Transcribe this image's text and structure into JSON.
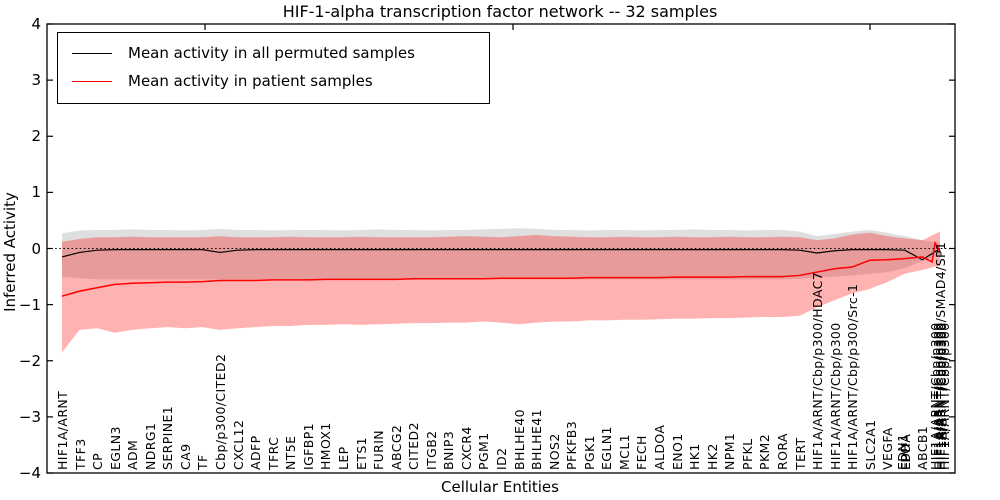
{
  "title": "HIF-1-alpha transcription factor network -- 32 samples",
  "chart_data": {
    "type": "line",
    "title": "HIF-1-alpha transcription factor network -- 32 samples",
    "xlabel": "Cellular Entities",
    "ylabel": "Inferred Activity",
    "ylim": [
      -4,
      4
    ],
    "yticks": [
      4,
      3,
      2,
      1,
      0,
      -1,
      -2,
      -3,
      -4
    ],
    "grid": false,
    "legend_position": "upper left",
    "zero_line": 0,
    "categories": [
      "HIF1A/ARNT",
      "TFF3",
      "CP",
      "EGLN3",
      "ADM",
      "NDRG1",
      "SERPINE1",
      "CA9",
      "TF",
      "Cbp/p300/CITED2",
      "CXCL12",
      "ADFP",
      "TFRC",
      "NT5E",
      "IGFBP1",
      "HMOX1",
      "LEP",
      "ETS1",
      "FURIN",
      "ABCG2",
      "CITED2",
      "ITGB2",
      "BNIP3",
      "CXCR4",
      "PGM1",
      "ID2",
      "BHLHE40",
      "BHLHE41",
      "NOS2",
      "PFKFB3",
      "PGK1",
      "EGLN1",
      "MCL1",
      "FECH",
      "ALDOA",
      "ENO1",
      "HK1",
      "HK2",
      "NPM1",
      "PFKL",
      "PKM2",
      "RORA",
      "TERT",
      "HIF1A/ARNT/Cbp/p300/HDAC7",
      "HIF1A/ARNT/Cbp/p300",
      "HIF1A/ARNT/Cbp/p300/Src-1",
      "SLC2A1",
      "VEGFA",
      "EPO",
      "ABCB1",
      "HIF1A/ARNT/Cbp/p300/SMAD4/SP1"
    ],
    "overlapping_labels": [
      {
        "index": 48,
        "labels": [
          "EDN1",
          "LDHA"
        ]
      },
      {
        "index": 50,
        "labels": [
          "HIF1A/ARNT/Cbp/p300",
          "HIF1A/ARNT/Cbp/p300",
          "HIF1A/ARNT/Cbp/p300",
          "HIF1A/ARNT/Cbp/p300"
        ]
      }
    ],
    "series": [
      {
        "name": "Mean activity in all permuted samples",
        "color": "#000000",
        "band_color": "rgba(128,128,128,0.25)",
        "values": [
          -0.15,
          -0.07,
          -0.03,
          -0.02,
          -0.02,
          -0.02,
          -0.02,
          -0.02,
          -0.02,
          -0.07,
          -0.03,
          -0.02,
          -0.02,
          -0.02,
          -0.02,
          -0.02,
          -0.02,
          -0.02,
          -0.02,
          -0.02,
          -0.02,
          -0.02,
          -0.02,
          -0.02,
          -0.02,
          -0.02,
          -0.02,
          -0.02,
          -0.02,
          -0.02,
          -0.02,
          -0.02,
          -0.02,
          -0.02,
          -0.02,
          -0.02,
          -0.02,
          -0.02,
          -0.02,
          -0.02,
          -0.02,
          -0.02,
          -0.03,
          -0.08,
          -0.04,
          -0.02,
          -0.02,
          -0.02,
          -0.03,
          -0.2,
          0.0
        ],
        "band_upper": [
          0.27,
          0.32,
          0.33,
          0.33,
          0.34,
          0.33,
          0.33,
          0.32,
          0.33,
          0.35,
          0.33,
          0.33,
          0.32,
          0.33,
          0.33,
          0.33,
          0.32,
          0.33,
          0.34,
          0.33,
          0.33,
          0.32,
          0.33,
          0.33,
          0.34,
          0.35,
          0.36,
          0.35,
          0.33,
          0.33,
          0.32,
          0.33,
          0.33,
          0.32,
          0.33,
          0.33,
          0.34,
          0.33,
          0.33,
          0.32,
          0.33,
          0.33,
          0.3,
          0.22,
          0.26,
          0.3,
          0.33,
          0.28,
          0.22,
          0.15,
          0.1
        ],
        "band_lower": [
          -0.5,
          -0.53,
          -0.55,
          -0.55,
          -0.55,
          -0.55,
          -0.55,
          -0.55,
          -0.55,
          -0.55,
          -0.55,
          -0.55,
          -0.55,
          -0.55,
          -0.55,
          -0.55,
          -0.55,
          -0.55,
          -0.55,
          -0.55,
          -0.55,
          -0.55,
          -0.55,
          -0.55,
          -0.55,
          -0.55,
          -0.55,
          -0.55,
          -0.55,
          -0.55,
          -0.55,
          -0.55,
          -0.55,
          -0.55,
          -0.55,
          -0.55,
          -0.55,
          -0.55,
          -0.55,
          -0.55,
          -0.55,
          -0.55,
          -0.54,
          -0.52,
          -0.5,
          -0.48,
          -0.45,
          -0.42,
          -0.35,
          -0.22,
          -0.12
        ]
      },
      {
        "name": "Mean activity in patient samples",
        "color": "#ff0000",
        "band_color": "rgba(255,0,0,0.30)",
        "values": [
          -0.85,
          -0.76,
          -0.7,
          -0.64,
          -0.62,
          -0.61,
          -0.6,
          -0.6,
          -0.59,
          -0.57,
          -0.57,
          -0.57,
          -0.56,
          -0.56,
          -0.56,
          -0.55,
          -0.55,
          -0.55,
          -0.55,
          -0.55,
          -0.54,
          -0.54,
          -0.54,
          -0.54,
          -0.54,
          -0.53,
          -0.53,
          -0.53,
          -0.53,
          -0.53,
          -0.52,
          -0.52,
          -0.52,
          -0.52,
          -0.52,
          -0.51,
          -0.51,
          -0.51,
          -0.51,
          -0.5,
          -0.5,
          -0.5,
          -0.48,
          -0.42,
          -0.36,
          -0.33,
          -0.21,
          -0.2,
          -0.18,
          -0.15,
          -0.05
        ],
        "extra_points": [
          [
            49.55,
            -0.24
          ],
          [
            49.72,
            0.1
          ]
        ],
        "band_upper": [
          0.12,
          0.17,
          0.2,
          0.2,
          0.21,
          0.2,
          0.2,
          0.2,
          0.2,
          0.22,
          0.2,
          0.2,
          0.2,
          0.21,
          0.2,
          0.2,
          0.2,
          0.21,
          0.2,
          0.2,
          0.2,
          0.2,
          0.21,
          0.22,
          0.21,
          0.2,
          0.22,
          0.24,
          0.22,
          0.21,
          0.2,
          0.2,
          0.21,
          0.2,
          0.2,
          0.21,
          0.2,
          0.2,
          0.21,
          0.2,
          0.2,
          0.21,
          0.2,
          0.15,
          0.18,
          0.25,
          0.28,
          0.22,
          0.18,
          0.15,
          0.3
        ],
        "band_lower": [
          -1.85,
          -1.45,
          -1.42,
          -1.5,
          -1.45,
          -1.42,
          -1.4,
          -1.42,
          -1.4,
          -1.45,
          -1.42,
          -1.4,
          -1.38,
          -1.38,
          -1.36,
          -1.36,
          -1.35,
          -1.36,
          -1.35,
          -1.34,
          -1.33,
          -1.33,
          -1.32,
          -1.32,
          -1.3,
          -1.32,
          -1.35,
          -1.32,
          -1.3,
          -1.3,
          -1.28,
          -1.28,
          -1.27,
          -1.27,
          -1.26,
          -1.25,
          -1.25,
          -1.24,
          -1.24,
          -1.23,
          -1.22,
          -1.22,
          -1.2,
          -1.05,
          -0.92,
          -0.8,
          -0.72,
          -0.6,
          -0.45,
          -0.38,
          -0.3
        ]
      }
    ]
  }
}
